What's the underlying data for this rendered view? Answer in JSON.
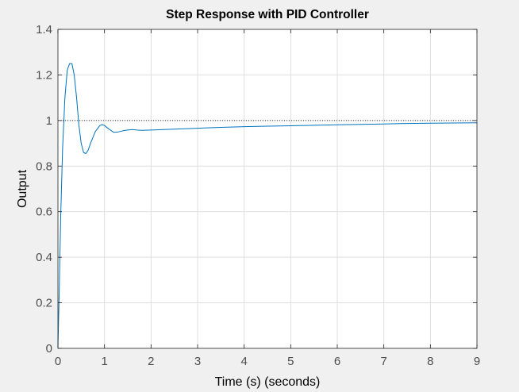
{
  "chart_data": {
    "type": "line",
    "title": "Step Response with PID Controller",
    "xlabel": "Time (s) (seconds)",
    "ylabel": "Output",
    "xlim": [
      0,
      9
    ],
    "ylim": [
      0,
      1.4
    ],
    "xticks": [
      0,
      1,
      2,
      3,
      4,
      5,
      6,
      7,
      8,
      9
    ],
    "yticks": [
      0,
      0.2,
      0.4,
      0.6,
      0.8,
      1,
      1.2,
      1.4
    ],
    "xtick_labels": [
      "0",
      "1",
      "2",
      "3",
      "4",
      "5",
      "6",
      "7",
      "8",
      "9"
    ],
    "ytick_labels": [
      "0",
      "0.2",
      "0.4",
      "0.6",
      "0.8",
      "1",
      "1.2",
      "1.4"
    ],
    "grid": true,
    "reference_line": {
      "y": 1,
      "style": "dotted",
      "color": "#000000"
    },
    "series": [
      {
        "color": "#0072bd",
        "x": [
          0,
          0.03,
          0.06,
          0.1,
          0.15,
          0.2,
          0.25,
          0.3,
          0.35,
          0.4,
          0.45,
          0.5,
          0.55,
          0.6,
          0.65,
          0.7,
          0.8,
          0.9,
          0.95,
          1.0,
          1.1,
          1.2,
          1.3,
          1.4,
          1.5,
          1.6,
          1.7,
          1.8,
          2.0,
          2.5,
          3.0,
          3.5,
          4.0,
          4.5,
          5.0,
          5.5,
          6.0,
          6.5,
          7.0,
          7.5,
          8.0,
          8.5,
          9.0
        ],
        "y": [
          0,
          0.28,
          0.58,
          0.88,
          1.1,
          1.22,
          1.25,
          1.25,
          1.2,
          1.1,
          0.98,
          0.9,
          0.86,
          0.855,
          0.87,
          0.9,
          0.95,
          0.978,
          0.982,
          0.978,
          0.962,
          0.948,
          0.95,
          0.955,
          0.958,
          0.96,
          0.958,
          0.957,
          0.958,
          0.962,
          0.966,
          0.97,
          0.973,
          0.975,
          0.977,
          0.979,
          0.981,
          0.983,
          0.985,
          0.987,
          0.988,
          0.989,
          0.99
        ]
      }
    ]
  }
}
